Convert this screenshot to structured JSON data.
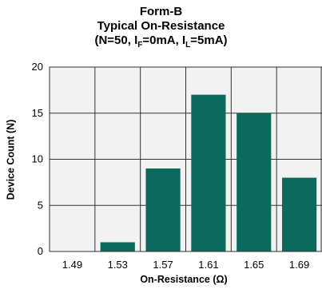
{
  "chart_data": {
    "type": "bar",
    "title": [
      "Form-B",
      "Typical On-Resistance"
    ],
    "title_params": {
      "prefix": "(N=50, I",
      "sub1": "F",
      "mid": "=0mA, I",
      "sub2": "L",
      "suffix": "=5mA)"
    },
    "xlabel": "On-Resistance (Ω)",
    "ylabel": "Device Count (N)",
    "categories": [
      "1.49",
      "1.53",
      "1.57",
      "1.61",
      "1.65",
      "1.69"
    ],
    "values": [
      0,
      1,
      9,
      17,
      15,
      8
    ],
    "ylim": [
      0,
      20
    ],
    "yticks": [
      0,
      5,
      10,
      15,
      20
    ],
    "grid": true,
    "bar_color": "#0b6a5c",
    "plot_background": "#f2f2f2"
  }
}
